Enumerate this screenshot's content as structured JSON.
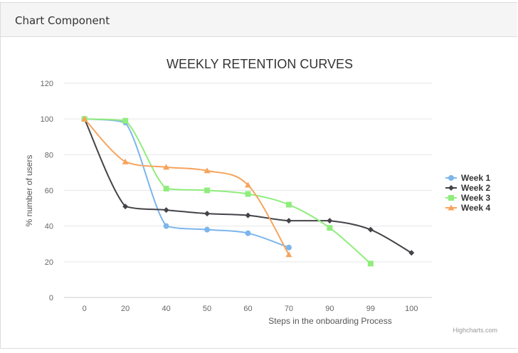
{
  "panel": {
    "title": "Chart Component"
  },
  "credits": "Highcharts.com",
  "chart_data": {
    "type": "line",
    "title": "WEEKLY RETENTION CURVES",
    "xlabel": "Steps in the onboarding Process",
    "ylabel": "% number of users",
    "categories": [
      "0",
      "20",
      "40",
      "50",
      "60",
      "70",
      "90",
      "99",
      "100"
    ],
    "ylim": [
      0,
      120
    ],
    "yticks": [
      0,
      20,
      40,
      60,
      80,
      100,
      120
    ],
    "grid": true,
    "legend_position": "right",
    "series": [
      {
        "name": "Week 1",
        "color": "#7cb5ec",
        "marker": "circle",
        "values": [
          100,
          98,
          40,
          38,
          36,
          28,
          null,
          null,
          null
        ]
      },
      {
        "name": "Week 2",
        "color": "#434348",
        "marker": "diamond",
        "values": [
          100,
          51,
          49,
          47,
          46,
          43,
          43,
          38,
          25
        ]
      },
      {
        "name": "Week 3",
        "color": "#90ed7d",
        "marker": "square",
        "values": [
          100,
          99,
          61,
          60,
          58,
          52,
          39,
          19,
          null
        ]
      },
      {
        "name": "Week 4",
        "color": "#f7a35c",
        "marker": "triangle",
        "values": [
          100,
          76,
          73,
          71,
          63,
          24,
          null,
          null,
          null
        ]
      }
    ]
  }
}
